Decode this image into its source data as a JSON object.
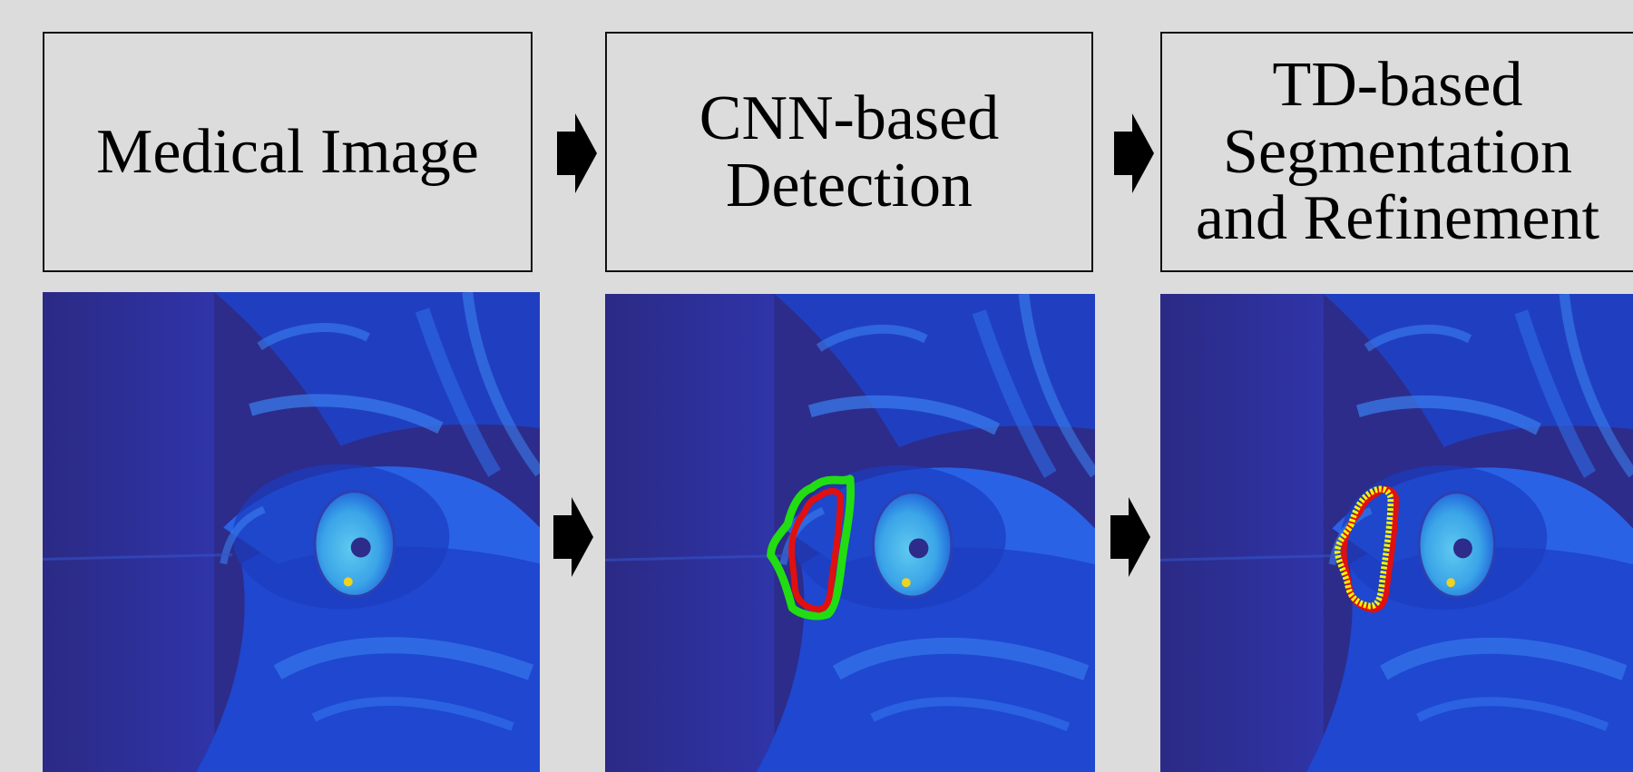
{
  "steps": [
    {
      "label": "Medical Image"
    },
    {
      "label": "CNN-based\nDetection"
    },
    {
      "label": "TD-based\nSegmentation\nand Refinement"
    }
  ],
  "panels": [
    {
      "overlay": "none"
    },
    {
      "overlay": "cnn-detection",
      "colors": {
        "outer": "#22dd11",
        "inner": "#e01010"
      }
    },
    {
      "overlay": "td-refinement",
      "colors": {
        "outer": "#e01010",
        "inner": "#f5f500"
      }
    }
  ],
  "colors": {
    "background": "#dcdcdc",
    "image_dark": "#2d2c8a",
    "image_mid": "#1e4fdc",
    "image_light": "#2f8df0"
  }
}
